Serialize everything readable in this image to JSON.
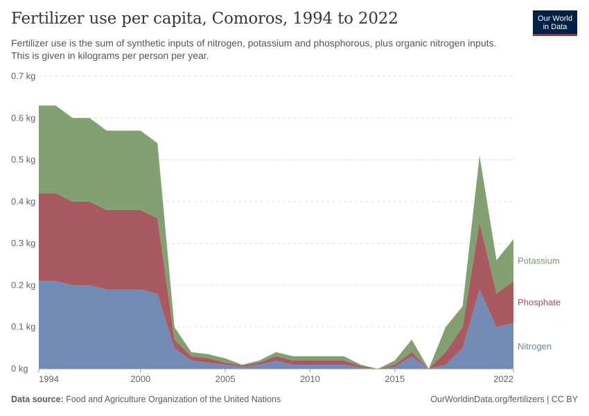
{
  "header": {
    "title": "Fertilizer use per capita, Comoros, 1994 to 2022",
    "subtitle": "Fertilizer use is the sum of synthetic inputs of nitrogen, potassium and phosphorous, plus organic nitrogen inputs. This is given in kilograms per person per year."
  },
  "logo": {
    "line1": "Our World",
    "line2": "in Data"
  },
  "footer": {
    "source_label": "Data source:",
    "source_text": "Food and Agriculture Organization of the United Nations",
    "url": "OurWorldinData.org/fertilizers | CC BY"
  },
  "colors": {
    "nitrogen": "#6d85b1",
    "phosphate": "#a45057",
    "potassium": "#7b9b6a",
    "grid": "#dddddd"
  },
  "chart_data": {
    "type": "area",
    "stacked": true,
    "x": [
      1994,
      1995,
      1996,
      1997,
      1998,
      1999,
      2000,
      2001,
      2002,
      2003,
      2004,
      2005,
      2006,
      2007,
      2008,
      2009,
      2010,
      2011,
      2012,
      2013,
      2014,
      2015,
      2016,
      2017,
      2018,
      2019,
      2020,
      2021,
      2022
    ],
    "series": [
      {
        "name": "Nitrogen",
        "color": "#6d85b1",
        "values": [
          0.21,
          0.21,
          0.2,
          0.2,
          0.19,
          0.19,
          0.19,
          0.18,
          0.05,
          0.02,
          0.015,
          0.01,
          0.005,
          0.01,
          0.02,
          0.01,
          0.01,
          0.01,
          0.01,
          0.003,
          0,
          0.005,
          0.03,
          0,
          0.01,
          0.05,
          0.19,
          0.1,
          0.11
        ]
      },
      {
        "name": "Phosphate",
        "color": "#a45057",
        "values": [
          0.21,
          0.21,
          0.2,
          0.2,
          0.19,
          0.19,
          0.19,
          0.18,
          0.02,
          0.01,
          0.01,
          0.005,
          0.003,
          0.005,
          0.01,
          0.01,
          0.01,
          0.01,
          0.01,
          0.004,
          0,
          0.005,
          0.01,
          0,
          0.03,
          0.05,
          0.16,
          0.08,
          0.1
        ]
      },
      {
        "name": "Potassium",
        "color": "#7b9b6a",
        "values": [
          0.21,
          0.21,
          0.2,
          0.2,
          0.19,
          0.19,
          0.19,
          0.18,
          0.03,
          0.01,
          0.01,
          0.01,
          0.002,
          0.005,
          0.01,
          0.01,
          0.01,
          0.01,
          0.01,
          0.003,
          0,
          0.01,
          0.03,
          0,
          0.06,
          0.05,
          0.16,
          0.08,
          0.1
        ]
      }
    ],
    "y_ticks": [
      "0 kg",
      "0.1 kg",
      "0.2 kg",
      "0.3 kg",
      "0.4 kg",
      "0.5 kg",
      "0.6 kg",
      "0.7 kg"
    ],
    "x_ticks": [
      "1994",
      "2000",
      "2005",
      "2010",
      "2015",
      "2022"
    ],
    "ylim": [
      0,
      0.7
    ],
    "xlim": [
      1994,
      2022
    ],
    "grid": "horizontal dashed",
    "legend_placement": "right, inline labels"
  }
}
